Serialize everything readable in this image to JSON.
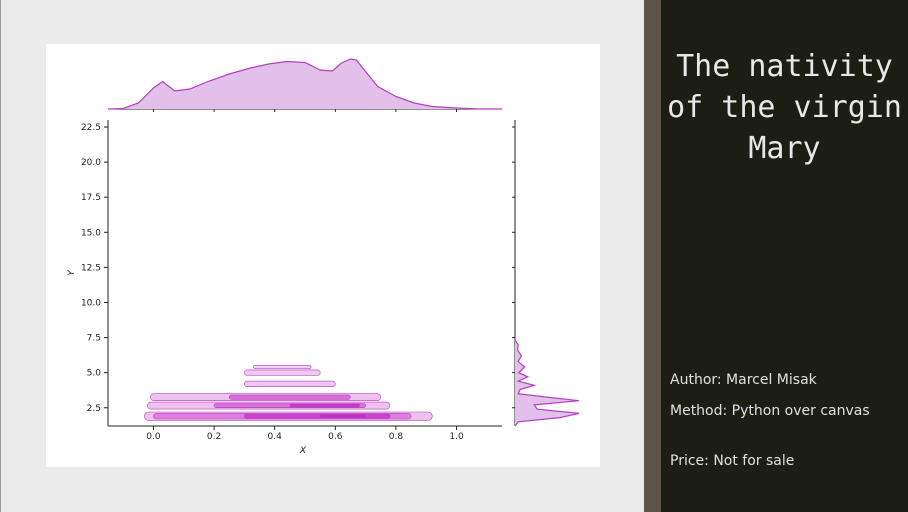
{
  "panel": {
    "title": "The nativity of the virgin Mary",
    "author": "Author: Marcel Misak",
    "method": "Method: Python over canvas",
    "price": "Price: Not for sale"
  },
  "colors": {
    "background": "#ebebeb",
    "panel": "#1c1d13",
    "divider": "#5e5548",
    "kde_line": "#b23fc0",
    "kde_fill": "#e2c0ea"
  },
  "chart_data": {
    "type": "jointplot-kde",
    "xlabel": "X",
    "ylabel": "Y",
    "xlim": [
      -0.15,
      1.15
    ],
    "ylim": [
      1.2,
      23.0
    ],
    "x_ticks": [
      0.0,
      0.2,
      0.4,
      0.6,
      0.8,
      1.0
    ],
    "y_ticks": [
      2.5,
      5.0,
      7.5,
      10.0,
      12.5,
      15.0,
      17.5,
      20.0,
      22.5
    ],
    "x_tick_labels": [
      "0.0",
      "0.2",
      "0.4",
      "0.6",
      "0.8",
      "1.0"
    ],
    "y_tick_labels": [
      "2.5",
      "5.0",
      "7.5",
      "10.0",
      "12.5",
      "15.0",
      "17.5",
      "20.0",
      "22.5"
    ],
    "grid": false,
    "marginal_x_density": {
      "x": [
        -0.15,
        -0.1,
        -0.05,
        0.0,
        0.03,
        0.07,
        0.12,
        0.18,
        0.25,
        0.32,
        0.38,
        0.44,
        0.5,
        0.55,
        0.59,
        0.62,
        0.65,
        0.67,
        0.7,
        0.74,
        0.8,
        0.86,
        0.92,
        1.0,
        1.08,
        1.15
      ],
      "density": [
        0.0,
        0.01,
        0.12,
        0.42,
        0.55,
        0.36,
        0.4,
        0.55,
        0.7,
        0.82,
        0.9,
        0.95,
        0.93,
        0.78,
        0.76,
        0.92,
        1.0,
        0.98,
        0.75,
        0.45,
        0.25,
        0.12,
        0.05,
        0.02,
        0.0,
        0.0
      ]
    },
    "marginal_y_density": {
      "y": [
        1.2,
        1.5,
        1.8,
        2.1,
        2.4,
        2.7,
        3.0,
        3.2,
        3.5,
        3.8,
        4.1,
        4.4,
        4.7,
        5.0,
        5.4,
        5.8,
        6.2,
        6.6,
        7.0,
        7.3
      ],
      "density": [
        0.0,
        0.05,
        0.7,
        1.0,
        0.35,
        0.3,
        1.0,
        0.6,
        0.05,
        0.08,
        0.3,
        0.05,
        0.2,
        0.06,
        0.15,
        0.05,
        0.1,
        0.04,
        0.05,
        0.0
      ]
    },
    "contour_bands": [
      {
        "x": [
          -0.03,
          0.92
        ],
        "y": [
          1.6,
          2.2
        ],
        "level": 0.15
      },
      {
        "x": [
          0.0,
          0.85
        ],
        "y": [
          1.7,
          2.1
        ],
        "level": 0.35
      },
      {
        "x": [
          0.3,
          0.78
        ],
        "y": [
          1.75,
          2.05
        ],
        "level": 0.7
      },
      {
        "x": [
          0.55,
          0.7
        ],
        "y": [
          1.8,
          2.0
        ],
        "level": 1.0
      },
      {
        "x": [
          -0.02,
          0.78
        ],
        "y": [
          2.4,
          2.9
        ],
        "level": 0.15
      },
      {
        "x": [
          0.2,
          0.7
        ],
        "y": [
          2.5,
          2.8
        ],
        "level": 0.45
      },
      {
        "x": [
          0.45,
          0.68
        ],
        "y": [
          2.55,
          2.75
        ],
        "level": 0.85
      },
      {
        "x": [
          -0.01,
          0.75
        ],
        "y": [
          3.0,
          3.5
        ],
        "level": 0.15
      },
      {
        "x": [
          0.25,
          0.65
        ],
        "y": [
          3.1,
          3.4
        ],
        "level": 0.5
      },
      {
        "x": [
          0.3,
          0.6
        ],
        "y": [
          4.0,
          4.4
        ],
        "level": 0.12
      },
      {
        "x": [
          0.3,
          0.55
        ],
        "y": [
          4.8,
          5.2
        ],
        "level": 0.1
      },
      {
        "x": [
          0.33,
          0.52
        ],
        "y": [
          5.3,
          5.5
        ],
        "level": 0.06
      }
    ]
  }
}
